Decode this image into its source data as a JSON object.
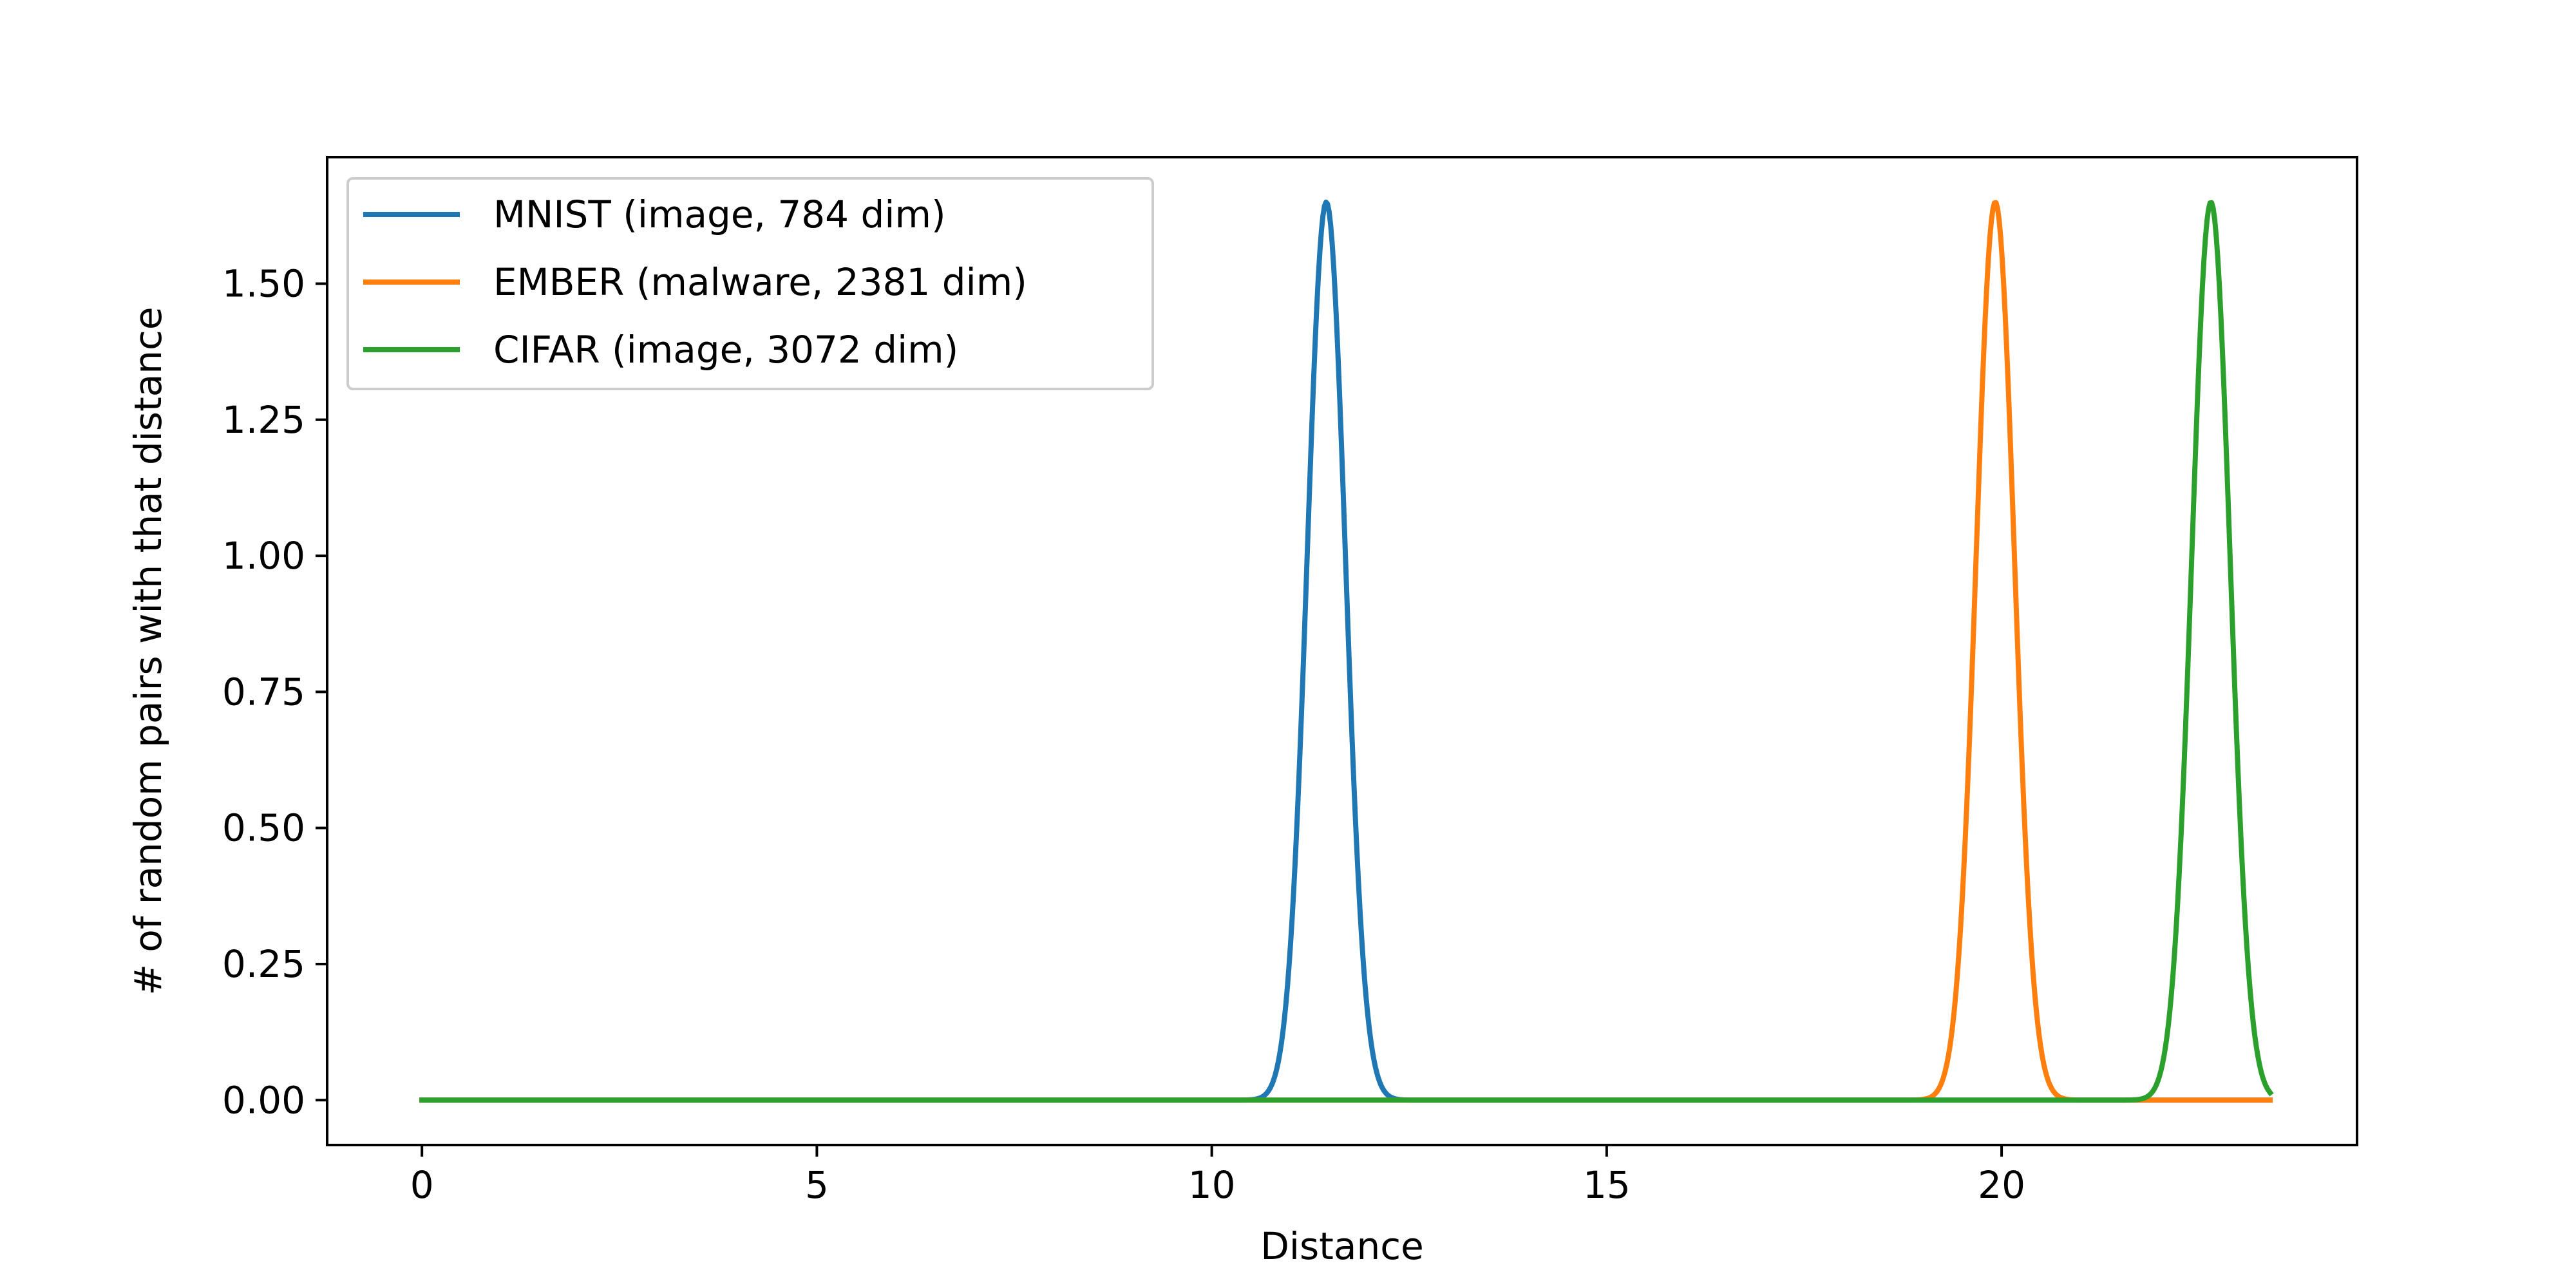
{
  "chart_data": {
    "type": "line",
    "title": "",
    "xlabel": "Distance",
    "ylabel": "# of random pairs with that distance",
    "xlim": [
      -1.2,
      24.5
    ],
    "ylim": [
      -0.0825,
      1.7325
    ],
    "xticks": [
      0,
      5,
      10,
      15,
      20
    ],
    "xtick_labels": [
      "0",
      "5",
      "10",
      "15",
      "20"
    ],
    "yticks": [
      0.0,
      0.25,
      0.5,
      0.75,
      1.0,
      1.25,
      1.5
    ],
    "ytick_labels": [
      "0.00",
      "0.25",
      "0.50",
      "0.75",
      "1.00",
      "1.25",
      "1.50"
    ],
    "grid": false,
    "legend_position": "top-left",
    "x_range": [
      0,
      23.4
    ],
    "series": [
      {
        "name": "MNIST (image, 784 dim)",
        "color": "#1f77b4",
        "peak_x": 11.45,
        "peak_y": 1.65,
        "sigma": 0.242
      },
      {
        "name": "EMBER (malware, 2381 dim)",
        "color": "#ff7f0e",
        "peak_x": 19.92,
        "peak_y": 1.65,
        "sigma": 0.242
      },
      {
        "name": "CIFAR (image, 3072 dim)",
        "color": "#2ca02c",
        "peak_x": 22.65,
        "peak_y": 1.65,
        "sigma": 0.242
      }
    ]
  }
}
